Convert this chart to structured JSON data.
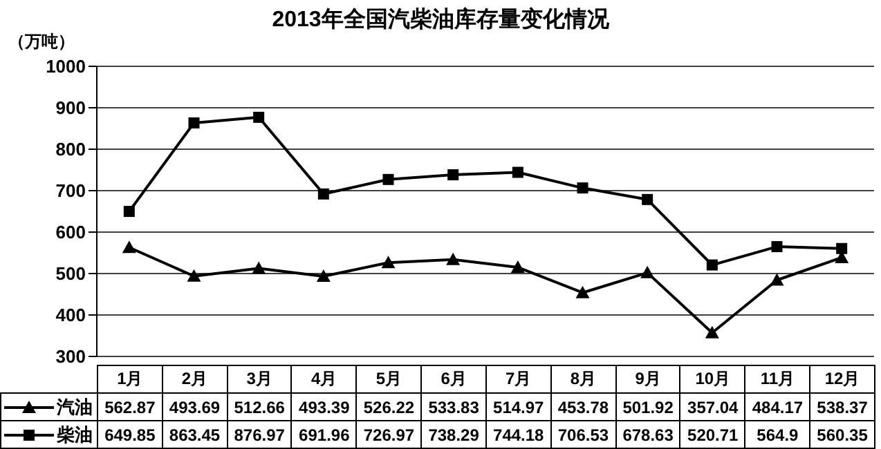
{
  "chart_data": {
    "type": "line",
    "title": "2013年全国汽柴油库存量变化情况",
    "ylabel": "（万吨）",
    "categories": [
      "1月",
      "2月",
      "3月",
      "4月",
      "5月",
      "6月",
      "7月",
      "8月",
      "9月",
      "10月",
      "11月",
      "12月"
    ],
    "series": [
      {
        "name": "汽油",
        "color": "#000000",
        "marker": "triangle",
        "values": [
          562.87,
          493.69,
          512.66,
          493.39,
          526.22,
          533.83,
          514.97,
          453.78,
          501.92,
          357.04,
          484.17,
          538.37
        ]
      },
      {
        "name": "柴油",
        "color": "#000000",
        "marker": "square",
        "values": [
          649.85,
          863.45,
          876.97,
          691.96,
          726.97,
          738.29,
          744.18,
          706.53,
          678.63,
          520.71,
          564.9,
          560.35
        ]
      }
    ],
    "ylim": [
      300,
      1000
    ],
    "yticks": [
      300,
      400,
      500,
      600,
      700,
      800,
      900,
      1000
    ],
    "grid": "y",
    "legend": "bottom left",
    "data_labels": true,
    "line_style": "solid"
  }
}
